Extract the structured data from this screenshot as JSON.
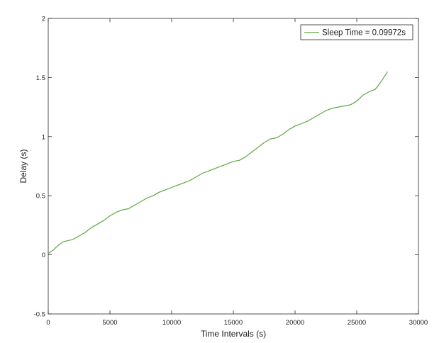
{
  "chart_data": {
    "type": "line",
    "title": "",
    "xlabel": "Time Intervals (s)",
    "ylabel": "Delay (s)",
    "xlim": [
      0,
      30000
    ],
    "ylim": [
      -0.5,
      2
    ],
    "xticks": [
      0,
      5000,
      10000,
      15000,
      20000,
      25000,
      30000
    ],
    "xtick_labels": [
      "0",
      "5000",
      "10000",
      "15000",
      "20000",
      "25000",
      "30000"
    ],
    "yticks": [
      -0.5,
      0,
      0.5,
      1,
      1.5,
      2
    ],
    "ytick_labels": [
      "-0.5",
      "0",
      "0.5",
      "1",
      "1.5",
      "2"
    ],
    "grid": false,
    "legend": {
      "position": "top-right"
    },
    "series": [
      {
        "name": "Sleep Time = 0.09972s",
        "color": "#5aa83c",
        "x": [
          0,
          400,
          800,
          1200,
          1600,
          2000,
          2500,
          3000,
          3500,
          4000,
          4500,
          5000,
          5500,
          6000,
          6500,
          7000,
          7500,
          8000,
          8500,
          9000,
          9500,
          10000,
          10500,
          11000,
          11500,
          12000,
          12500,
          13000,
          13500,
          14000,
          14500,
          15000,
          15500,
          16000,
          16500,
          17000,
          17500,
          18000,
          18500,
          19000,
          19500,
          20000,
          20500,
          21000,
          21500,
          22000,
          22500,
          23000,
          23500,
          24000,
          24500,
          25000,
          25500,
          26000,
          26500,
          27000,
          27500
        ],
        "y": [
          0.01,
          0.04,
          0.08,
          0.11,
          0.12,
          0.13,
          0.16,
          0.19,
          0.23,
          0.26,
          0.29,
          0.33,
          0.36,
          0.38,
          0.39,
          0.42,
          0.45,
          0.48,
          0.5,
          0.53,
          0.55,
          0.57,
          0.59,
          0.61,
          0.63,
          0.66,
          0.69,
          0.71,
          0.73,
          0.75,
          0.77,
          0.79,
          0.8,
          0.83,
          0.87,
          0.91,
          0.95,
          0.98,
          0.99,
          1.02,
          1.06,
          1.09,
          1.11,
          1.13,
          1.16,
          1.19,
          1.22,
          1.24,
          1.25,
          1.26,
          1.27,
          1.3,
          1.35,
          1.38,
          1.4,
          1.47,
          1.55
        ]
      }
    ]
  }
}
